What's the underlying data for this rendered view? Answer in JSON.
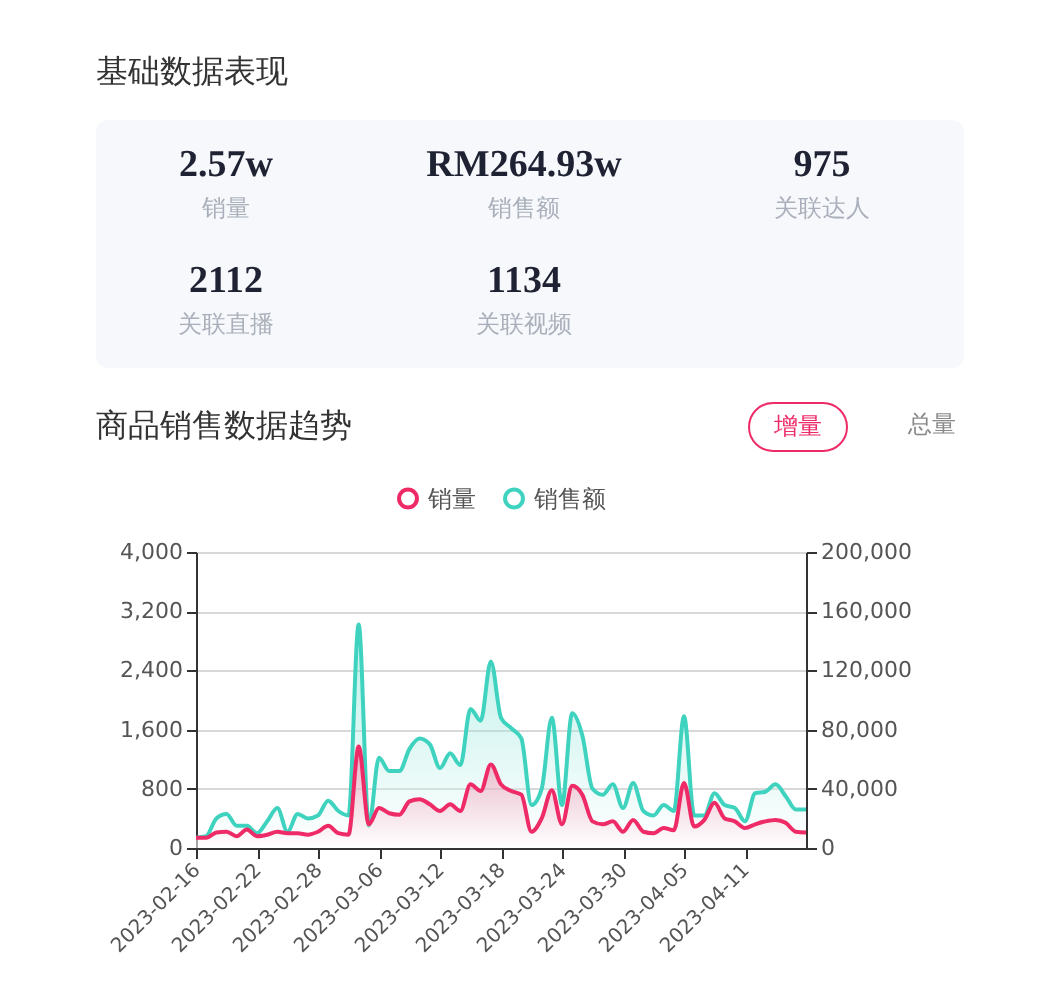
{
  "chart_data": [
    {
      "type": "other",
      "title": "基础数据表现",
      "annotations": [
        "2.57w",
        "销量",
        "RM264.93w",
        "销售额",
        "975",
        "关联达人",
        "2112",
        "关联直播",
        "1134",
        "关联视频"
      ]
    },
    {
      "type": "area",
      "title": "商品销售数据趋势",
      "annotations": [
        "增量",
        "总量"
      ],
      "legend": "top",
      "grid": "y",
      "x": [
        "2023-02-16",
        "2023-02-17",
        "2023-02-18",
        "2023-02-19",
        "2023-02-20",
        "2023-02-21",
        "2023-02-22",
        "2023-02-23",
        "2023-02-24",
        "2023-02-25",
        "2023-02-26",
        "2023-02-27",
        "2023-02-28",
        "2023-03-01",
        "2023-03-02",
        "2023-03-03",
        "2023-03-04",
        "2023-03-05",
        "2023-03-06",
        "2023-03-07",
        "2023-03-08",
        "2023-03-09",
        "2023-03-10",
        "2023-03-11",
        "2023-03-12",
        "2023-03-13",
        "2023-03-14",
        "2023-03-15",
        "2023-03-16",
        "2023-03-17",
        "2023-03-18",
        "2023-03-19",
        "2023-03-20",
        "2023-03-21",
        "2023-03-22",
        "2023-03-23",
        "2023-03-24",
        "2023-03-25",
        "2023-03-26",
        "2023-03-27",
        "2023-03-28",
        "2023-03-29",
        "2023-03-30",
        "2023-03-31",
        "2023-04-01",
        "2023-04-02",
        "2023-04-03",
        "2023-04-04",
        "2023-04-05",
        "2023-04-06",
        "2023-04-07",
        "2023-04-08",
        "2023-04-09",
        "2023-04-10",
        "2023-04-11",
        "2023-04-12",
        "2023-04-13",
        "2023-04-14",
        "2023-04-15",
        "2023-04-16",
        "2023-04-17"
      ],
      "xlim": [
        "2023-02-16",
        "2023-04-17"
      ],
      "xticks": [
        "2023-02-16",
        "2023-02-22",
        "2023-02-28",
        "2023-03-06",
        "2023-03-12",
        "2023-03-18",
        "2023-03-24",
        "2023-03-30",
        "2023-04-05",
        "2023-04-11"
      ],
      "ylim": [
        0,
        4000
      ],
      "yticks": [
        0,
        {
          "value": 800,
          "label": "800"
        },
        {
          "value": 1600,
          "label": "1,600"
        },
        {
          "value": 2400,
          "label": "2,400"
        },
        {
          "value": 3200,
          "label": "3,200"
        },
        {
          "value": 4000,
          "label": "4,000"
        }
      ],
      "y2lim": [
        0,
        200000
      ],
      "y2ticks": [
        0,
        {
          "value": 40000,
          "label": "40,000"
        },
        {
          "value": 80000,
          "label": "80,000"
        },
        {
          "value": 120000,
          "label": "120,000"
        },
        {
          "value": 160000,
          "label": "160,000"
        },
        {
          "value": 200000,
          "label": "200,000"
        }
      ],
      "series": [
        {
          "name": "销量",
          "color": "#ee2a67",
          "type": "area",
          "values": [
            140,
            140,
            210,
            220,
            160,
            250,
            160,
            180,
            220,
            200,
            200,
            180,
            220,
            300,
            200,
            180,
            1370,
            320,
            540,
            470,
            450,
            630,
            660,
            590,
            500,
            590,
            500,
            860,
            770,
            1130,
            860,
            770,
            720,
            220,
            400,
            780,
            320,
            840,
            720,
            360,
            320,
            360,
            220,
            380,
            220,
            200,
            270,
            240,
            880,
            290,
            380,
            610,
            400,
            360,
            270,
            320,
            360,
            380,
            340,
            220,
            210
          ]
        },
        {
          "name": "销售额",
          "color": "#3fd3bf",
          "type": "area",
          "axis": "y2",
          "values": [
            7000,
            8000,
            20000,
            23000,
            15000,
            15000,
            10000,
            18000,
            27000,
            11000,
            23000,
            20000,
            22000,
            32000,
            25000,
            22000,
            151000,
            15000,
            61000,
            52000,
            52000,
            67000,
            74000,
            70000,
            54000,
            64000,
            56000,
            94000,
            86000,
            126000,
            88000,
            81000,
            74000,
            29000,
            40000,
            88000,
            29000,
            91000,
            76000,
            40000,
            36000,
            43000,
            27000,
            44000,
            25000,
            22000,
            29000,
            25000,
            89000,
            22000,
            22000,
            37000,
            29000,
            27000,
            18000,
            37000,
            38000,
            43000,
            35000,
            26000,
            26000
          ]
        }
      ]
    }
  ]
}
